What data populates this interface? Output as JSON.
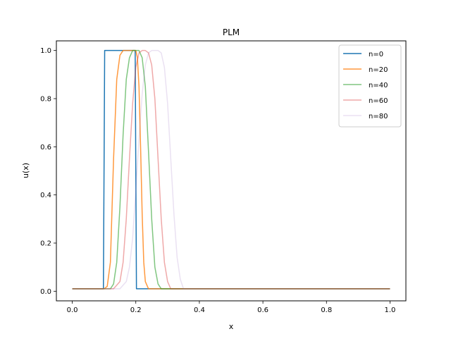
{
  "chart_data": {
    "type": "line",
    "title": "PLM",
    "xlabel": "x",
    "ylabel": "u(x)",
    "xlim": [
      -0.05,
      1.05
    ],
    "ylim": [
      -0.04,
      1.04
    ],
    "xticks": [
      0.0,
      0.2,
      0.4,
      0.6,
      0.8,
      1.0
    ],
    "xtick_labels": [
      "0.0",
      "0.2",
      "0.4",
      "0.6",
      "0.8",
      "1.0"
    ],
    "yticks": [
      0.0,
      0.2,
      0.4,
      0.6,
      0.8,
      1.0
    ],
    "ytick_labels": [
      "0.0",
      "0.2",
      "0.4",
      "0.6",
      "0.8",
      "1.0"
    ],
    "grid": false,
    "legend_position": "top-right",
    "series": [
      {
        "name": "n=0",
        "color": "#1f77b4",
        "opacity": 1.0,
        "x": [
          0.0,
          0.098,
          0.1,
          0.102,
          0.198,
          0.2,
          0.202,
          1.0
        ],
        "y": [
          0.01,
          0.01,
          0.5,
          1.0,
          1.0,
          0.5,
          0.01,
          0.01
        ]
      },
      {
        "name": "n=20",
        "color": "#ff7f0e",
        "opacity": 0.8,
        "x": [
          0.0,
          0.1,
          0.11,
          0.12,
          0.13,
          0.14,
          0.15,
          0.16,
          0.17,
          0.18,
          0.19,
          0.2,
          0.205,
          0.21,
          0.215,
          0.22,
          0.225,
          0.23,
          0.24,
          0.25,
          1.0
        ],
        "y": [
          0.01,
          0.01,
          0.02,
          0.12,
          0.55,
          0.88,
          0.98,
          1.0,
          1.0,
          1.0,
          1.0,
          1.0,
          0.97,
          0.85,
          0.6,
          0.32,
          0.12,
          0.04,
          0.01,
          0.01,
          0.01
        ]
      },
      {
        "name": "n=40",
        "color": "#2ca02c",
        "opacity": 0.6,
        "x": [
          0.0,
          0.12,
          0.13,
          0.14,
          0.15,
          0.16,
          0.17,
          0.18,
          0.19,
          0.2,
          0.21,
          0.22,
          0.23,
          0.24,
          0.25,
          0.26,
          0.27,
          0.28,
          1.0
        ],
        "y": [
          0.01,
          0.01,
          0.03,
          0.12,
          0.35,
          0.65,
          0.88,
          0.97,
          1.0,
          1.0,
          1.0,
          0.97,
          0.85,
          0.58,
          0.3,
          0.1,
          0.03,
          0.01,
          0.01
        ]
      },
      {
        "name": "n=60",
        "color": "#d62728",
        "opacity": 0.4,
        "x": [
          0.0,
          0.13,
          0.15,
          0.16,
          0.17,
          0.18,
          0.19,
          0.2,
          0.21,
          0.22,
          0.23,
          0.24,
          0.25,
          0.26,
          0.27,
          0.28,
          0.29,
          0.3,
          0.31,
          1.0
        ],
        "y": [
          0.01,
          0.01,
          0.04,
          0.12,
          0.3,
          0.55,
          0.78,
          0.93,
          0.99,
          1.0,
          1.0,
          0.99,
          0.94,
          0.8,
          0.55,
          0.3,
          0.12,
          0.04,
          0.01,
          0.01
        ]
      },
      {
        "name": "n=80",
        "color": "#9467bd",
        "opacity": 0.2,
        "x": [
          0.0,
          0.15,
          0.17,
          0.18,
          0.19,
          0.2,
          0.21,
          0.22,
          0.23,
          0.24,
          0.25,
          0.26,
          0.27,
          0.28,
          0.29,
          0.3,
          0.31,
          0.32,
          0.33,
          0.34,
          0.35,
          1.0
        ],
        "y": [
          0.01,
          0.01,
          0.04,
          0.1,
          0.22,
          0.42,
          0.63,
          0.82,
          0.94,
          0.99,
          1.0,
          1.0,
          1.0,
          0.99,
          0.93,
          0.78,
          0.55,
          0.32,
          0.14,
          0.05,
          0.01,
          0.01
        ]
      }
    ]
  }
}
